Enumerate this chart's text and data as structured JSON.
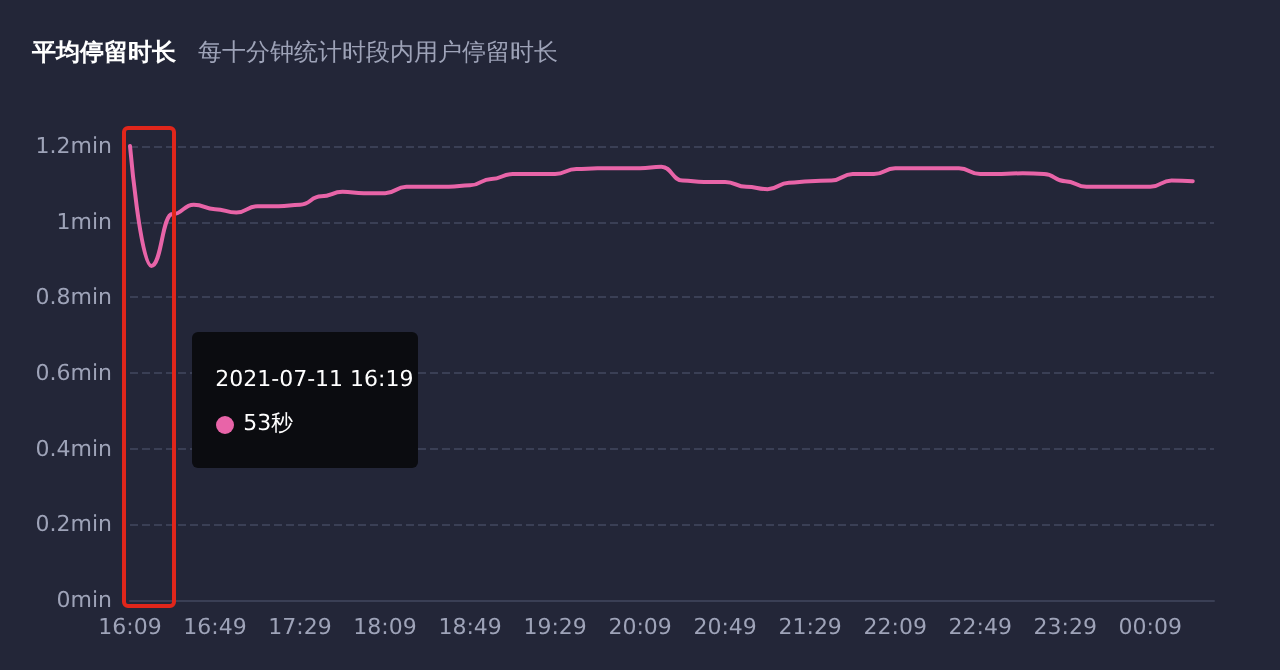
{
  "chart_data": {
    "type": "line",
    "title": "平均停留时长",
    "subtitle": "每十分钟统计时段内用户停留时长",
    "categories": [
      "16:09",
      null,
      null,
      null,
      "16:49",
      null,
      null,
      null,
      "17:29",
      null,
      null,
      null,
      "18:09",
      null,
      null,
      null,
      "18:49",
      null,
      null,
      null,
      "19:29",
      null,
      null,
      null,
      "20:09",
      null,
      null,
      null,
      "20:49",
      null,
      null,
      null,
      "21:29",
      null,
      null,
      null,
      "22:09",
      null,
      null,
      null,
      "22:49",
      null,
      null,
      null,
      "23:29",
      null,
      null,
      null,
      "00:09",
      null,
      null,
      null
    ],
    "series": [
      {
        "color": "#e864a8",
        "values": [
          1.2,
          0.883,
          1.02,
          1.045,
          1.033,
          1.024,
          1.041,
          1.041,
          1.045,
          1.067,
          1.079,
          1.075,
          1.075,
          1.092,
          1.092,
          1.092,
          1.096,
          1.113,
          1.126,
          1.126,
          1.126,
          1.139,
          1.141,
          1.141,
          1.141,
          1.145,
          1.109,
          1.105,
          1.105,
          1.092,
          1.086,
          1.103,
          1.107,
          1.109,
          1.126,
          1.126,
          1.141,
          1.141,
          1.141,
          1.141,
          1.126,
          1.126,
          1.128,
          1.126,
          1.107,
          1.092,
          1.092,
          1.092,
          1.092,
          1.109,
          1.107,
          null
        ]
      }
    ],
    "ylim": [
      0,
      1.2
    ],
    "yticks": [
      {
        "value": 0,
        "label": "0min"
      },
      {
        "value": 0.2,
        "label": "0.2min"
      },
      {
        "value": 0.4,
        "label": "0.4min"
      },
      {
        "value": 0.6,
        "label": "0.6min"
      },
      {
        "value": 0.8,
        "label": "0.8min"
      },
      {
        "value": 1,
        "label": "1min"
      },
      {
        "value": 1.2,
        "label": "1.2min"
      }
    ],
    "grid": "y",
    "marker": "none",
    "line_style": "solid",
    "annotations": [
      "2021-07-11 16:19",
      "53秒"
    ]
  }
}
